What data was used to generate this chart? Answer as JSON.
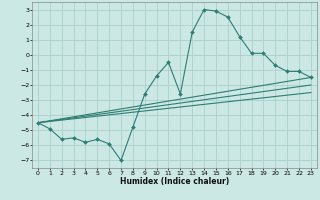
{
  "xlabel": "Humidex (Indice chaleur)",
  "background_color": "#cce8e4",
  "grid_color": "#aacfcb",
  "line_color": "#2e7d72",
  "xlim": [
    -0.5,
    23.5
  ],
  "ylim": [
    -7.5,
    3.5
  ],
  "xticks": [
    0,
    1,
    2,
    3,
    4,
    5,
    6,
    7,
    8,
    9,
    10,
    11,
    12,
    13,
    14,
    15,
    16,
    17,
    18,
    19,
    20,
    21,
    22,
    23
  ],
  "yticks": [
    -7,
    -6,
    -5,
    -4,
    -3,
    -2,
    -1,
    0,
    1,
    2,
    3
  ],
  "line1": {
    "x": [
      0,
      1,
      2,
      3,
      4,
      5,
      6,
      7,
      8,
      9,
      10,
      11,
      12,
      13,
      14,
      15,
      16,
      17,
      18,
      19,
      20,
      21,
      22,
      23
    ],
    "y": [
      -4.5,
      -4.9,
      -5.6,
      -5.5,
      -5.8,
      -5.6,
      -5.9,
      -7.0,
      -4.8,
      -2.6,
      -1.4,
      -0.5,
      -2.6,
      1.5,
      3.0,
      2.9,
      2.5,
      1.2,
      0.1,
      0.1,
      -0.7,
      -1.1,
      -1.1,
      -1.5
    ]
  },
  "line2": {
    "x": [
      0,
      23
    ],
    "y": [
      -4.5,
      -1.5
    ]
  },
  "line3": {
    "x": [
      0,
      23
    ],
    "y": [
      -4.5,
      -2.0
    ]
  },
  "line4": {
    "x": [
      0,
      23
    ],
    "y": [
      -4.5,
      -2.5
    ]
  }
}
